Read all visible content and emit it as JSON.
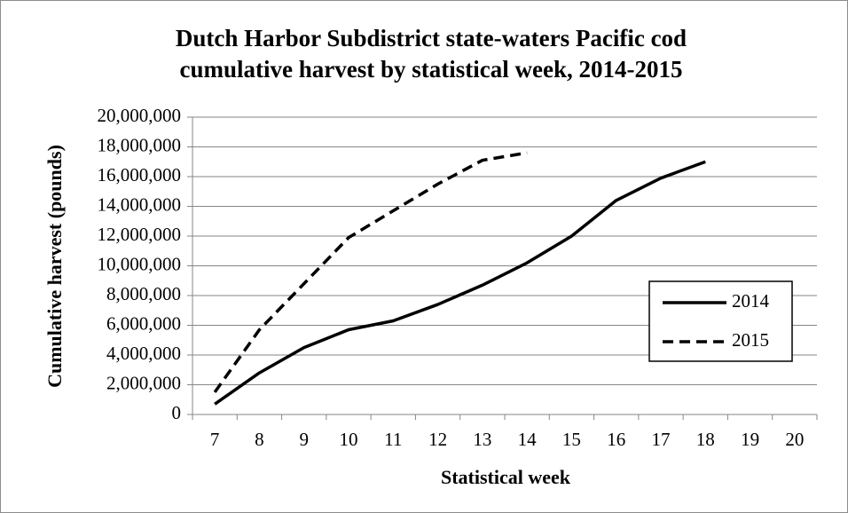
{
  "chart_data": {
    "type": "line",
    "title": [
      "Dutch Harbor Subdistrict state-waters Pacific cod",
      "cumulative harvest by statistical week, 2014-2015"
    ],
    "x_label": "Statistical week",
    "y_label": "Cumulative harvest (pounds)",
    "categories": [
      "7",
      "8",
      "9",
      "10",
      "11",
      "12",
      "13",
      "14",
      "15",
      "16",
      "17",
      "18",
      "19",
      "20"
    ],
    "series": [
      {
        "name": "2014",
        "color": "#000000",
        "dash": "solid",
        "values": [
          700000,
          2800000,
          4500000,
          5700000,
          6300000,
          7400000,
          8700000,
          10200000,
          12000000,
          14400000,
          15900000,
          17000000,
          null,
          null
        ]
      },
      {
        "name": "2015",
        "color": "#000000",
        "dash": "dashed",
        "values": [
          1500000,
          5700000,
          8800000,
          11900000,
          13700000,
          15500000,
          17100000,
          17600000,
          null,
          null,
          null,
          null,
          null,
          null
        ]
      }
    ],
    "ylim": [
      0,
      20000000
    ],
    "yticks": [
      0,
      {
        "value": 2000000,
        "label": "2,000,000"
      },
      {
        "value": 4000000,
        "label": "4,000,000"
      },
      {
        "value": 6000000,
        "label": "6,000,000"
      },
      {
        "value": 8000000,
        "label": "8,000,000"
      },
      {
        "value": 10000000,
        "label": "10,000,000"
      },
      {
        "value": 12000000,
        "label": "12,000,000"
      },
      {
        "value": 14000000,
        "label": "14,000,000"
      },
      {
        "value": 16000000,
        "label": "16,000,000"
      },
      {
        "value": 18000000,
        "label": "18,000,000"
      },
      {
        "value": 20000000,
        "label": "20,000,000"
      }
    ],
    "grid": true,
    "legend": "right"
  }
}
